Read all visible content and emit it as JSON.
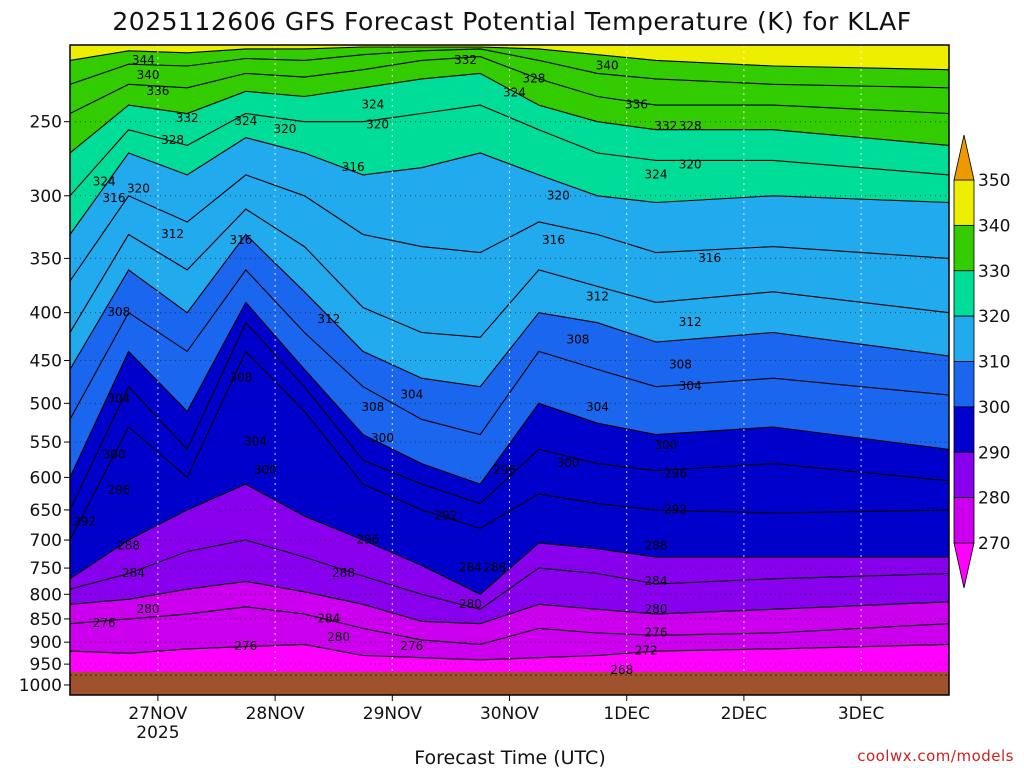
{
  "chart_data": {
    "type": "heatmap",
    "title": "2025112606 GFS Forecast Potential Temperature (K) for KLAF",
    "xlabel": "Forecast Time (UTC)",
    "ylabel": "",
    "credit": "coolwx.com/models",
    "x_ticks": [
      {
        "label": "27NOV",
        "sub": "2025",
        "t": 18
      },
      {
        "label": "28NOV",
        "sub": "",
        "t": 42
      },
      {
        "label": "29NOV",
        "sub": "",
        "t": 66
      },
      {
        "label": "30NOV",
        "sub": "",
        "t": 90
      },
      {
        "label": "1DEC",
        "sub": "",
        "t": 114
      },
      {
        "label": "2DEC",
        "sub": "",
        "t": 138
      },
      {
        "label": "3DEC",
        "sub": "",
        "t": 162
      }
    ],
    "y_ticks": [
      250,
      300,
      350,
      400,
      450,
      500,
      550,
      600,
      650,
      700,
      750,
      800,
      850,
      900,
      950,
      1000
    ],
    "xlim_hours": [
      0,
      180
    ],
    "ylim_hpa": [
      207,
      1025
    ],
    "y_scale": "log-pressure (reversed)",
    "colorbar": {
      "levels": [
        270,
        280,
        290,
        300,
        310,
        320,
        330,
        340,
        350
      ],
      "colors": [
        "#ff00ff",
        "#cc00ee",
        "#8800ee",
        "#0000cc",
        "#1a66ee",
        "#22aaee",
        "#00dd99",
        "#33cc00",
        "#eeee00",
        "#ee9900"
      ]
    },
    "series": [
      {
        "theta": 272,
        "p": [
          920,
          925,
          915,
          910,
          905,
          930,
          935,
          940,
          935,
          930,
          920,
          915,
          905
        ]
      },
      {
        "theta": 276,
        "p": [
          860,
          850,
          840,
          825,
          840,
          870,
          895,
          905,
          870,
          880,
          885,
          880,
          860
        ]
      },
      {
        "theta": 280,
        "p": [
          820,
          810,
          790,
          775,
          795,
          820,
          855,
          860,
          820,
          830,
          840,
          830,
          815
        ]
      },
      {
        "theta": 284,
        "p": [
          790,
          760,
          720,
          700,
          730,
          765,
          800,
          830,
          750,
          760,
          780,
          770,
          760
        ]
      },
      {
        "theta": 288,
        "p": [
          770,
          700,
          650,
          610,
          660,
          700,
          745,
          800,
          705,
          715,
          730,
          730,
          730
        ]
      },
      {
        "theta": 292,
        "p": [
          700,
          530,
          600,
          440,
          510,
          610,
          650,
          680,
          625,
          640,
          650,
          655,
          650
        ]
      },
      {
        "theta": 296,
        "p": [
          650,
          480,
          560,
          410,
          480,
          575,
          610,
          640,
          560,
          580,
          590,
          580,
          605
        ]
      },
      {
        "theta": 300,
        "p": [
          600,
          440,
          510,
          390,
          460,
          540,
          580,
          610,
          500,
          525,
          540,
          530,
          560
        ]
      },
      {
        "theta": 304,
        "p": [
          520,
          400,
          440,
          360,
          420,
          480,
          520,
          540,
          440,
          460,
          480,
          470,
          490
        ]
      },
      {
        "theta": 308,
        "p": [
          460,
          360,
          400,
          330,
          380,
          440,
          470,
          480,
          400,
          410,
          430,
          420,
          445
        ]
      },
      {
        "theta": 312,
        "p": [
          420,
          330,
          360,
          310,
          340,
          395,
          420,
          425,
          360,
          375,
          390,
          380,
          400
        ]
      },
      {
        "theta": 316,
        "p": [
          370,
          300,
          320,
          285,
          300,
          330,
          340,
          345,
          320,
          330,
          345,
          340,
          350
        ]
      },
      {
        "theta": 320,
        "p": [
          330,
          270,
          285,
          260,
          270,
          285,
          280,
          270,
          285,
          300,
          305,
          300,
          305
        ]
      },
      {
        "theta": 324,
        "p": [
          300,
          255,
          265,
          245,
          250,
          250,
          245,
          240,
          255,
          270,
          275,
          275,
          285
        ]
      },
      {
        "theta": 328,
        "p": [
          270,
          240,
          245,
          232,
          235,
          230,
          225,
          222,
          240,
          250,
          255,
          255,
          265
        ]
      },
      {
        "theta": 332,
        "p": [
          245,
          228,
          230,
          222,
          224,
          220,
          215,
          213,
          225,
          235,
          240,
          240,
          245
        ]
      },
      {
        "theta": 336,
        "p": [
          228,
          217,
          218,
          214,
          215,
          212,
          210,
          209,
          215,
          222,
          225,
          228,
          230
        ]
      },
      {
        "theta": 340,
        "p": [
          215,
          210,
          211,
          209,
          209,
          208,
          208,
          208,
          209,
          212,
          215,
          218,
          220
        ]
      }
    ],
    "series_times": [
      0,
      12,
      24,
      36,
      48,
      60,
      72,
      84,
      96,
      108,
      120,
      144,
      180
    ],
    "contour_labels": [
      {
        "text": "344",
        "t": 15,
        "p": 215
      },
      {
        "text": "340",
        "t": 16,
        "p": 223
      },
      {
        "text": "336",
        "t": 18,
        "p": 232
      },
      {
        "text": "332",
        "t": 24,
        "p": 248
      },
      {
        "text": "328",
        "t": 21,
        "p": 262
      },
      {
        "text": "324",
        "t": 7,
        "p": 290
      },
      {
        "text": "320",
        "t": 14,
        "p": 295
      },
      {
        "text": "316",
        "t": 9,
        "p": 302
      },
      {
        "text": "312",
        "t": 21,
        "p": 330
      },
      {
        "text": "308",
        "t": 10,
        "p": 400
      },
      {
        "text": "304",
        "t": 10,
        "p": 495
      },
      {
        "text": "300",
        "t": 9,
        "p": 568
      },
      {
        "text": "296",
        "t": 10,
        "p": 620
      },
      {
        "text": "292",
        "t": 3,
        "p": 670
      },
      {
        "text": "288",
        "t": 12,
        "p": 710
      },
      {
        "text": "284",
        "t": 13,
        "p": 760
      },
      {
        "text": "280",
        "t": 16,
        "p": 830
      },
      {
        "text": "276",
        "t": 7,
        "p": 860
      },
      {
        "text": "324",
        "t": 36,
        "p": 250
      },
      {
        "text": "320",
        "t": 44,
        "p": 255
      },
      {
        "text": "316",
        "t": 35,
        "p": 335
      },
      {
        "text": "312",
        "t": 53,
        "p": 407
      },
      {
        "text": "308",
        "t": 35,
        "p": 470
      },
      {
        "text": "304",
        "t": 38,
        "p": 550
      },
      {
        "text": "300",
        "t": 40,
        "p": 590
      },
      {
        "text": "288",
        "t": 56,
        "p": 760
      },
      {
        "text": "284",
        "t": 53,
        "p": 850
      },
      {
        "text": "280",
        "t": 55,
        "p": 890
      },
      {
        "text": "276",
        "t": 36,
        "p": 910
      },
      {
        "text": "296",
        "t": 61,
        "p": 700
      },
      {
        "text": "316",
        "t": 58,
        "p": 280
      },
      {
        "text": "308",
        "t": 62,
        "p": 505
      },
      {
        "text": "324",
        "t": 62,
        "p": 240
      },
      {
        "text": "320",
        "t": 63,
        "p": 252
      },
      {
        "text": "332",
        "t": 81,
        "p": 215
      },
      {
        "text": "328",
        "t": 95,
        "p": 225
      },
      {
        "text": "324",
        "t": 91,
        "p": 233
      },
      {
        "text": "300",
        "t": 64,
        "p": 545
      },
      {
        "text": "304",
        "t": 70,
        "p": 490
      },
      {
        "text": "292",
        "t": 77,
        "p": 660
      },
      {
        "text": "284",
        "t": 82,
        "p": 750
      },
      {
        "text": "288",
        "t": 87,
        "p": 750
      },
      {
        "text": "280",
        "t": 82,
        "p": 820
      },
      {
        "text": "276",
        "t": 70,
        "p": 910
      },
      {
        "text": "296",
        "t": 89,
        "p": 590
      },
      {
        "text": "300",
        "t": 102,
        "p": 580
      },
      {
        "text": "320",
        "t": 100,
        "p": 300
      },
      {
        "text": "316",
        "t": 99,
        "p": 335
      },
      {
        "text": "312",
        "t": 108,
        "p": 385
      },
      {
        "text": "308",
        "t": 104,
        "p": 428
      },
      {
        "text": "304",
        "t": 108,
        "p": 505
      },
      {
        "text": "340",
        "t": 110,
        "p": 218
      },
      {
        "text": "336",
        "t": 116,
        "p": 240
      },
      {
        "text": "332",
        "t": 122,
        "p": 253
      },
      {
        "text": "328",
        "t": 127,
        "p": 253
      },
      {
        "text": "324",
        "t": 120,
        "p": 285
      },
      {
        "text": "320",
        "t": 127,
        "p": 278
      },
      {
        "text": "316",
        "t": 131,
        "p": 350
      },
      {
        "text": "312",
        "t": 127,
        "p": 410
      },
      {
        "text": "308",
        "t": 125,
        "p": 455
      },
      {
        "text": "304",
        "t": 127,
        "p": 480
      },
      {
        "text": "300",
        "t": 122,
        "p": 555
      },
      {
        "text": "296",
        "t": 124,
        "p": 595
      },
      {
        "text": "292",
        "t": 124,
        "p": 650
      },
      {
        "text": "288",
        "t": 120,
        "p": 710
      },
      {
        "text": "284",
        "t": 120,
        "p": 775
      },
      {
        "text": "280",
        "t": 120,
        "p": 830
      },
      {
        "text": "276",
        "t": 120,
        "p": 880
      },
      {
        "text": "272",
        "t": 118,
        "p": 920
      },
      {
        "text": "268",
        "t": 113,
        "p": 965
      }
    ]
  }
}
